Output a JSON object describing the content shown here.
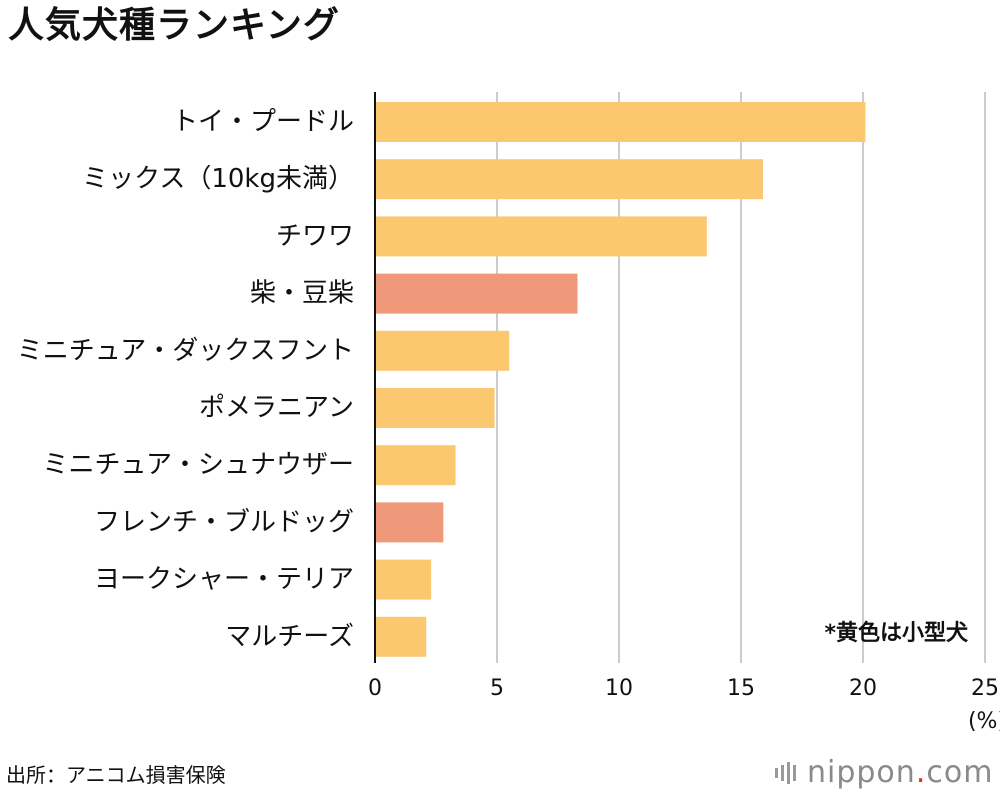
{
  "header": {
    "title": "人気犬種ランキング"
  },
  "chart_data": {
    "type": "bar",
    "orientation": "horizontal",
    "title": "人気犬種ランキング",
    "categories": [
      "トイ・プードル",
      "ミックス（10kg未満）",
      "チワワ",
      "柴・豆柴",
      "ミニチュア・ダックスフント",
      "ポメラニアン",
      "ミニチュア・シュナウザー",
      "フレンチ・ブルドッグ",
      "ヨークシャー・テリア",
      "マルチーズ"
    ],
    "values": [
      20.1,
      15.9,
      13.6,
      8.3,
      5.5,
      4.9,
      3.3,
      2.8,
      2.3,
      2.1
    ],
    "small_dog": [
      true,
      true,
      true,
      false,
      true,
      true,
      true,
      false,
      true,
      true
    ],
    "xlim": [
      0,
      25
    ],
    "xticks": [
      0,
      5,
      10,
      15,
      20,
      25
    ],
    "xunit": "(%)",
    "grid": true,
    "note": "*黄色は小型犬",
    "colors": {
      "small": "#fbc870",
      "other": "#f0997a",
      "grid": "#cccccc",
      "axis": "#111111"
    }
  },
  "footer": {
    "source": "出所：アニコム損害保険",
    "logo_main": "nippon",
    "logo_dot": ".",
    "logo_tld": "com"
  }
}
